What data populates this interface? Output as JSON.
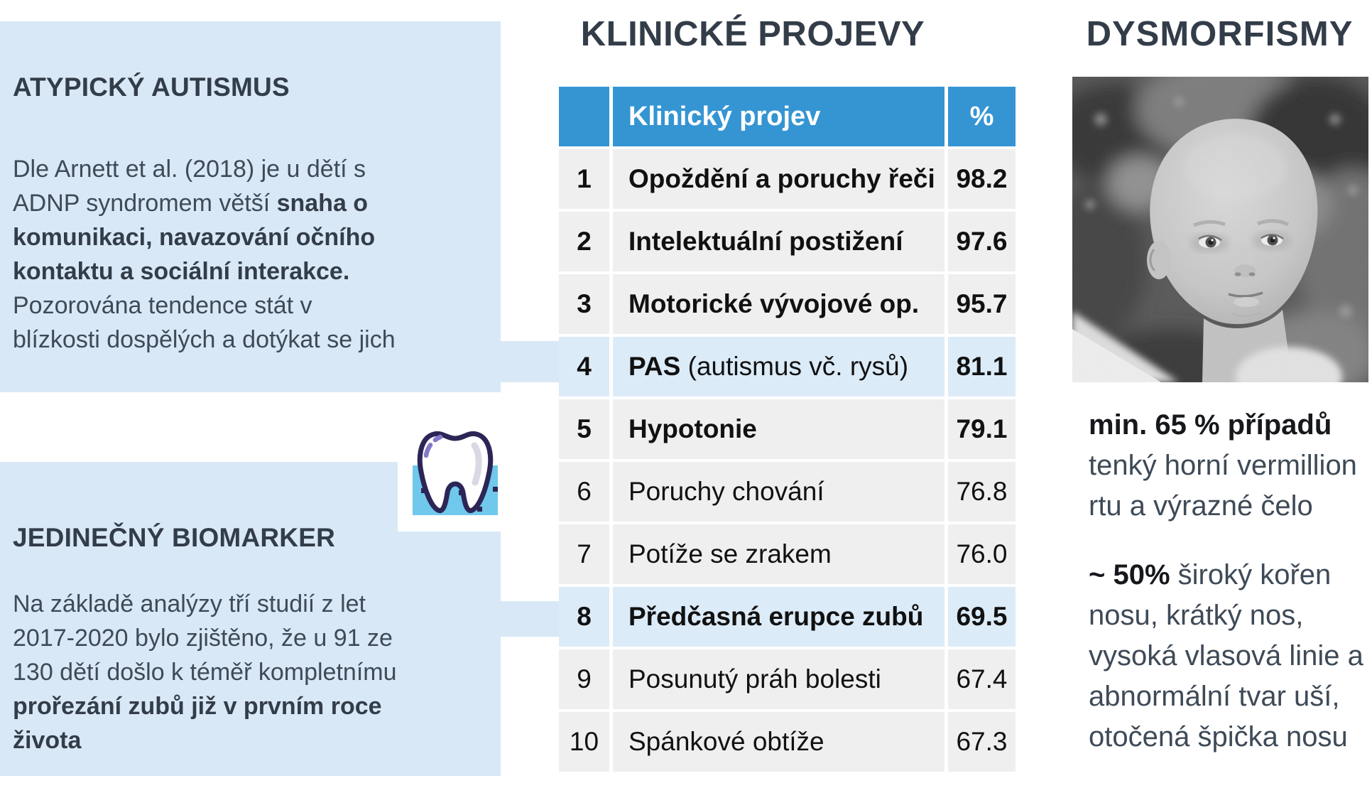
{
  "colors": {
    "accent_blue": "#3595d3",
    "panel_blue": "#d9e8f6",
    "row_gray": "#f0efef",
    "row_highlight": "#dcebf8",
    "heading_dark": "#333d49",
    "text_dark": "#3e4a57",
    "table_text": "#111111",
    "tooth_navy": "#2b2656",
    "tooth_band": "#70c8ec",
    "tooth_purple": "#8379cb"
  },
  "left_panel": {
    "box1": {
      "heading": "ATYPICKÝ AUTISMUS",
      "paragraph": [
        {
          "t": "Dle Arnett et al. (2018) je u dětí s\nADNP syndromem větší ",
          "b": false
        },
        {
          "t": "snaha o\nkomunikaci, navazování očního\nkontaktu a sociální interakce.",
          "b": true
        },
        {
          "t": "\nPozorována tendence stát v\nblízkosti dospělých a dotýkat se jich",
          "b": false
        }
      ]
    },
    "box2": {
      "heading": "JEDINEČNÝ BIOMARKER",
      "paragraph": [
        {
          "t": "Na základě analýzy tří studií z let\n2017-2020 bylo zjištěno, že u 91 ze\n130 dětí došlo k téměř kompletnímu\n",
          "b": false
        },
        {
          "t": "prořezání zubů již v prvním roce\nživota",
          "b": true
        }
      ]
    },
    "tooth_icon": "tooth-icon"
  },
  "clinical": {
    "title": "KLINICKÉ PROJEVY",
    "table": {
      "headers": {
        "rank": "",
        "label": "Klinický projev",
        "pct": "%"
      },
      "rows": [
        {
          "rank": "1",
          "label": [
            {
              "t": "Opoždění a poruchy řeči",
              "b": true
            }
          ],
          "pct": "98.2",
          "bold": true,
          "highlighted": false
        },
        {
          "rank": "2",
          "label": [
            {
              "t": "Intelektuální postižení",
              "b": true
            }
          ],
          "pct": "97.6",
          "bold": true,
          "highlighted": false
        },
        {
          "rank": "3",
          "label": [
            {
              "t": "Motorické vývojové op.",
              "b": true
            }
          ],
          "pct": "95.7",
          "bold": true,
          "highlighted": false
        },
        {
          "rank": "4",
          "label": [
            {
              "t": "PAS",
              "b": true
            },
            {
              "t": " (autismus vč. rysů)",
              "b": false
            }
          ],
          "pct": "81.1",
          "bold": true,
          "highlighted": true
        },
        {
          "rank": "5",
          "label": [
            {
              "t": "Hypotonie",
              "b": true
            }
          ],
          "pct": "79.1",
          "bold": true,
          "highlighted": false
        },
        {
          "rank": "6",
          "label": [
            {
              "t": "Poruchy chování",
              "b": false
            }
          ],
          "pct": "76.8",
          "bold": false,
          "highlighted": false
        },
        {
          "rank": "7",
          "label": [
            {
              "t": "Potíže se zrakem",
              "b": false
            }
          ],
          "pct": "76.0",
          "bold": false,
          "highlighted": false
        },
        {
          "rank": "8",
          "label": [
            {
              "t": "Předčasná erupce zubů",
              "b": true
            }
          ],
          "pct": "69.5",
          "bold": true,
          "highlighted": true
        },
        {
          "rank": "9",
          "label": [
            {
              "t": "Posunutý práh bolesti",
              "b": false
            }
          ],
          "pct": "67.4",
          "bold": false,
          "highlighted": false
        },
        {
          "rank": "10",
          "label": [
            {
              "t": "Spánkové obtíže",
              "b": false
            }
          ],
          "pct": "67.3",
          "bold": false,
          "highlighted": false
        }
      ]
    }
  },
  "dysmorphisms": {
    "title": "DYSMORFISMY",
    "photo_alt": "black-and-white photo of a toddler",
    "para1": [
      {
        "t": "min. 65 % případů",
        "b": true
      },
      {
        "t": "\ntenký horní vermillion\nrtu a výrazné čelo",
        "b": false
      }
    ],
    "para2": [
      {
        "t": "~ 50%",
        "b": true
      },
      {
        "t": " široký kořen\nnosu, krátký nos,\nvysoká vlasová linie a\nabnormální tvar uší,\notočená špička nosu",
        "b": false
      }
    ]
  }
}
